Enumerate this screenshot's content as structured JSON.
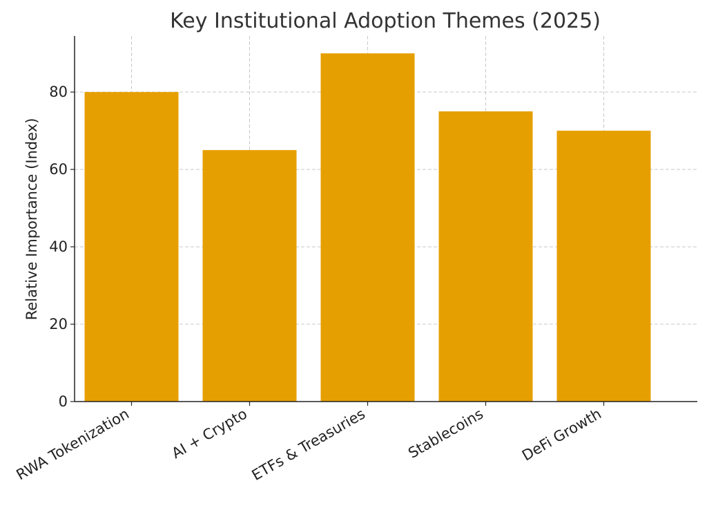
{
  "chart_data": {
    "type": "bar",
    "title": "Key Institutional Adoption Themes (2025)",
    "xlabel": "",
    "ylabel": "Relative Importance (Index)",
    "categories": [
      "RWA Tokenization",
      "AI + Crypto",
      "ETFs & Treasuries",
      "Stablecoins",
      "DeFi Growth"
    ],
    "values": [
      80,
      65,
      90,
      75,
      70
    ],
    "ylim": [
      0,
      94.5
    ],
    "yticks": [
      0,
      20,
      40,
      60,
      80
    ],
    "grid": true,
    "bar_color": "#e69f00"
  }
}
